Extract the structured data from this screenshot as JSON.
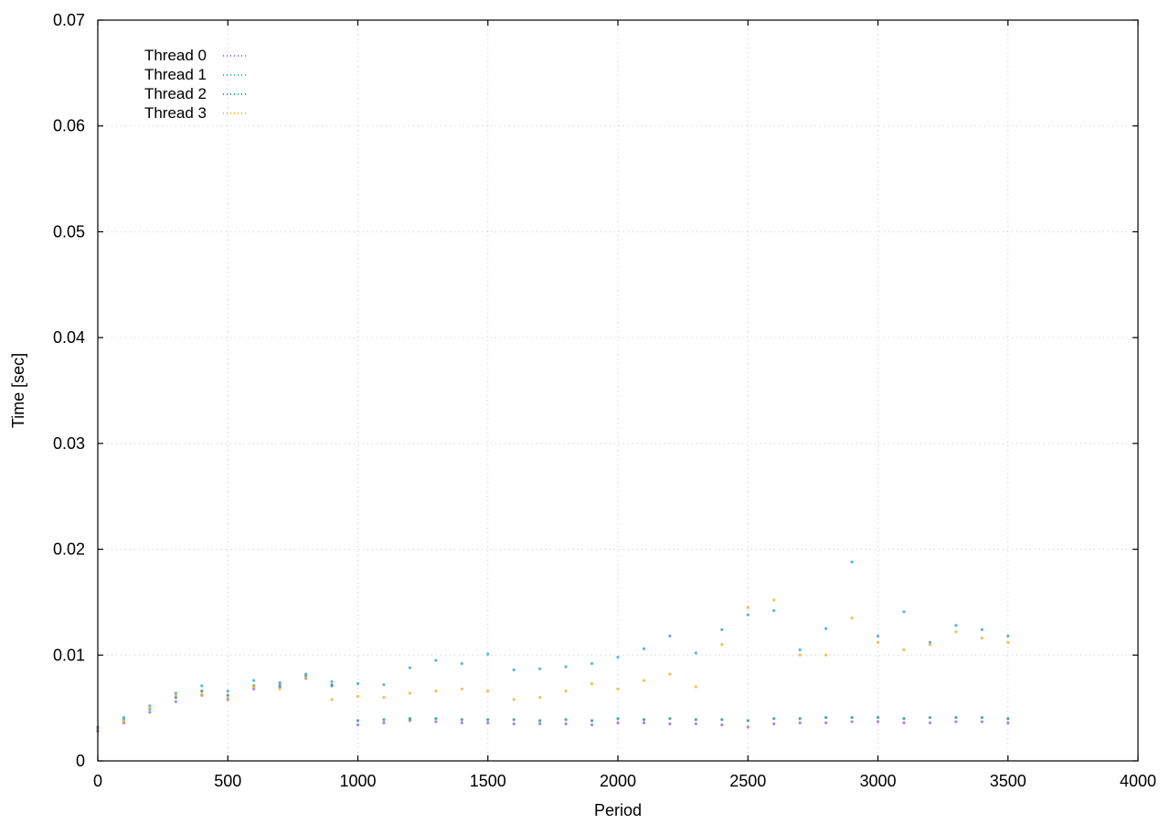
{
  "chart_data": {
    "type": "scatter",
    "title": "",
    "xlabel": "Period",
    "ylabel": "Time [sec]",
    "xlim": [
      0,
      4000
    ],
    "ylim": [
      0,
      0.07
    ],
    "xticks": [
      0,
      500,
      1000,
      1500,
      2000,
      2500,
      3000,
      3500,
      4000
    ],
    "xtick_labels": [
      "0",
      "500",
      "1000",
      "1500",
      "2000",
      "2500",
      "3000",
      "3500",
      "4000"
    ],
    "yticks": [
      0,
      0.01,
      0.02,
      0.03,
      0.04,
      0.05,
      0.06,
      0.07
    ],
    "ytick_labels": [
      "0",
      "0.01",
      "0.02",
      "0.03",
      "0.04",
      "0.05",
      "0.06",
      "0.07"
    ],
    "grid": true,
    "legend_position": "top-left",
    "series": [
      {
        "name": "Thread 0",
        "color": "#a56de2",
        "x": [
          0,
          100,
          200,
          300,
          400,
          500,
          600,
          700,
          800,
          900,
          1000,
          1100,
          1200,
          1300,
          1400,
          1500,
          1600,
          1700,
          1800,
          1900,
          2000,
          2100,
          2200,
          2300,
          2400,
          2500,
          2600,
          2700,
          2800,
          2900,
          3000,
          3100,
          3200,
          3300,
          3400,
          3500
        ],
        "y": [
          0.0028,
          0.0036,
          0.0046,
          0.0056,
          0.0062,
          0.0058,
          0.0068,
          0.0072,
          0.0078,
          0.0072,
          0.0034,
          0.0036,
          0.0038,
          0.0037,
          0.0036,
          0.0036,
          0.0035,
          0.0035,
          0.0035,
          0.0034,
          0.0036,
          0.0036,
          0.0035,
          0.0035,
          0.0034,
          0.0032,
          0.0035,
          0.0036,
          0.0036,
          0.0037,
          0.0037,
          0.0036,
          0.0036,
          0.0037,
          0.0037,
          0.0036
        ]
      },
      {
        "name": "Thread 1",
        "color": "#3fa9d6",
        "x": [
          0,
          100,
          200,
          300,
          400,
          500,
          600,
          700,
          800,
          900,
          1000,
          1100,
          1200,
          1300,
          1400,
          1500,
          1600,
          1700,
          1800,
          1900,
          2000,
          2100,
          2200,
          2300,
          2400,
          2500,
          2600,
          2700,
          2800,
          2900,
          3000,
          3100,
          3200,
          3300,
          3400,
          3500
        ],
        "y": [
          0.0032,
          0.0041,
          0.0052,
          0.0064,
          0.0071,
          0.0066,
          0.0076,
          0.0074,
          0.0082,
          0.0075,
          0.0073,
          0.0072,
          0.0088,
          0.0095,
          0.0092,
          0.0101,
          0.0086,
          0.0087,
          0.0089,
          0.0092,
          0.0098,
          0.0106,
          0.0118,
          0.0102,
          0.0124,
          0.0138,
          0.0142,
          0.0105,
          0.0125,
          0.0188,
          0.0118,
          0.0141,
          0.0112,
          0.0128,
          0.0124,
          0.0118
        ]
      },
      {
        "name": "Thread 2",
        "color": "#2e9a8a",
        "x": [
          0,
          100,
          200,
          300,
          400,
          500,
          600,
          700,
          800,
          900,
          1000,
          1100,
          1200,
          1300,
          1400,
          1500,
          1600,
          1700,
          1800,
          1900,
          2000,
          2100,
          2200,
          2300,
          2400,
          2500,
          2600,
          2700,
          2800,
          2900,
          3000,
          3100,
          3200,
          3300,
          3400,
          3500
        ],
        "y": [
          0.003,
          0.0039,
          0.0049,
          0.006,
          0.0066,
          0.0062,
          0.0071,
          0.007,
          0.008,
          0.0071,
          0.0038,
          0.0039,
          0.004,
          0.004,
          0.0039,
          0.0039,
          0.0039,
          0.0038,
          0.0039,
          0.0038,
          0.004,
          0.0039,
          0.004,
          0.0039,
          0.0039,
          0.0038,
          0.004,
          0.004,
          0.0041,
          0.0041,
          0.0041,
          0.004,
          0.0041,
          0.0041,
          0.0041,
          0.004
        ]
      },
      {
        "name": "Thread 3",
        "color": "#f3b43a",
        "x": [
          0,
          100,
          200,
          300,
          400,
          500,
          600,
          700,
          800,
          900,
          1000,
          1100,
          1200,
          1300,
          1400,
          1500,
          1600,
          1700,
          1800,
          1900,
          2000,
          2100,
          2200,
          2300,
          2400,
          2500,
          2600,
          2700,
          2800,
          2900,
          3000,
          3100,
          3200,
          3300,
          3400,
          3500
        ],
        "y": [
          0.003,
          0.0038,
          0.005,
          0.0062,
          0.0063,
          0.006,
          0.007,
          0.0068,
          0.0079,
          0.0058,
          0.0061,
          0.006,
          0.0064,
          0.0066,
          0.0068,
          0.0066,
          0.0058,
          0.006,
          0.0066,
          0.0073,
          0.0068,
          0.0076,
          0.0082,
          0.007,
          0.011,
          0.0145,
          0.0152,
          0.01,
          0.01,
          0.0135,
          0.0112,
          0.0105,
          0.011,
          0.0122,
          0.0116,
          0.0112
        ]
      }
    ]
  }
}
